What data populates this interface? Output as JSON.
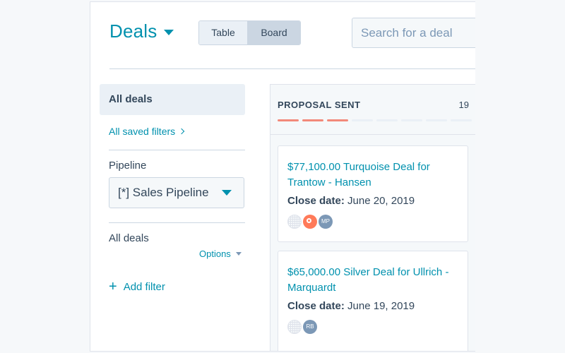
{
  "header": {
    "title": "Deals",
    "view_toggle": {
      "table_label": "Table",
      "board_label": "Board",
      "active": "Board"
    },
    "search": {
      "placeholder": "Search for a deal",
      "value": ""
    }
  },
  "sidebar": {
    "all_deals_label": "All deals",
    "saved_filters_label": "All saved filters",
    "pipeline": {
      "label": "Pipeline",
      "selected": "[*] Sales Pipeline"
    },
    "filter_section_label": "All deals",
    "options_label": "Options",
    "add_filter_label": "Add filter"
  },
  "board": {
    "column": {
      "title": "PROPOSAL SENT",
      "count": "19",
      "progress": {
        "filled_segments": 3,
        "total_segments": 8,
        "filled_color": "#f2897a"
      }
    },
    "cards": [
      {
        "title": "$77,100.00 Turquoise Deal for Trantow - Hansen",
        "close_label": "Close date:",
        "close_date": "June 20, 2019",
        "avatars": [
          {
            "type": "company",
            "icon": "company-placeholder-icon"
          },
          {
            "type": "hubspot",
            "icon": "hubspot-sprocket-icon"
          },
          {
            "type": "person",
            "initials": "MP"
          }
        ]
      },
      {
        "title": "$65,000.00 Silver Deal for Ullrich - Marquardt",
        "close_label": "Close date:",
        "close_date": "June 19, 2019",
        "avatars": [
          {
            "type": "company",
            "icon": "company-placeholder-icon"
          },
          {
            "type": "person",
            "initials": "RB"
          }
        ]
      }
    ]
  },
  "colors": {
    "accent": "#0091ae",
    "text": "#33475b",
    "border": "#cbd6e2",
    "page_bg": "#f6f8fa",
    "avatar_person": "#7c98b6",
    "avatar_hubspot": "#ff7a59"
  }
}
